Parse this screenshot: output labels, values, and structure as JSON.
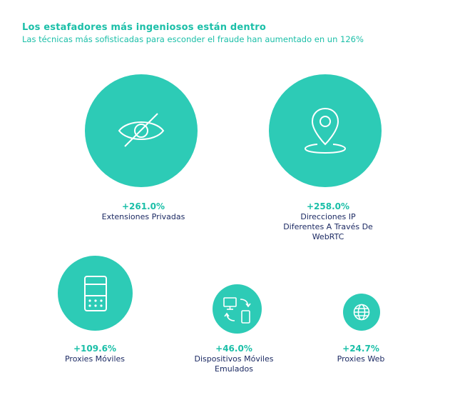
{
  "header": {
    "title": "Los estafadores más ingeniosos están dentro",
    "subtitle": "Las técnicas más sofisticadas para esconder el fraude han aumentado en un 126%"
  },
  "colors": {
    "accent": "#2dcbb6",
    "accent_text": "#1bbfa8",
    "label_text": "#1c2a63"
  },
  "stats": [
    {
      "icon": "eye-slash-icon",
      "value": "+261.0%",
      "label_lines": [
        "Extensiones Privadas"
      ]
    },
    {
      "icon": "location-pin-icon",
      "value": "+258.0%",
      "label_lines": [
        "Direcciones IP",
        "Diferentes A Través De",
        "WebRTC"
      ]
    },
    {
      "icon": "mobile-phone-icon",
      "value": "+109.6%",
      "label_lines": [
        "Proxies Móviles"
      ]
    },
    {
      "icon": "device-sync-icon",
      "value": "+46.0%",
      "label_lines": [
        "Dispositivos Móviles",
        "Emulados"
      ]
    },
    {
      "icon": "globe-icon",
      "value": "+24.7%",
      "label_lines": [
        "Proxies Web"
      ]
    }
  ]
}
